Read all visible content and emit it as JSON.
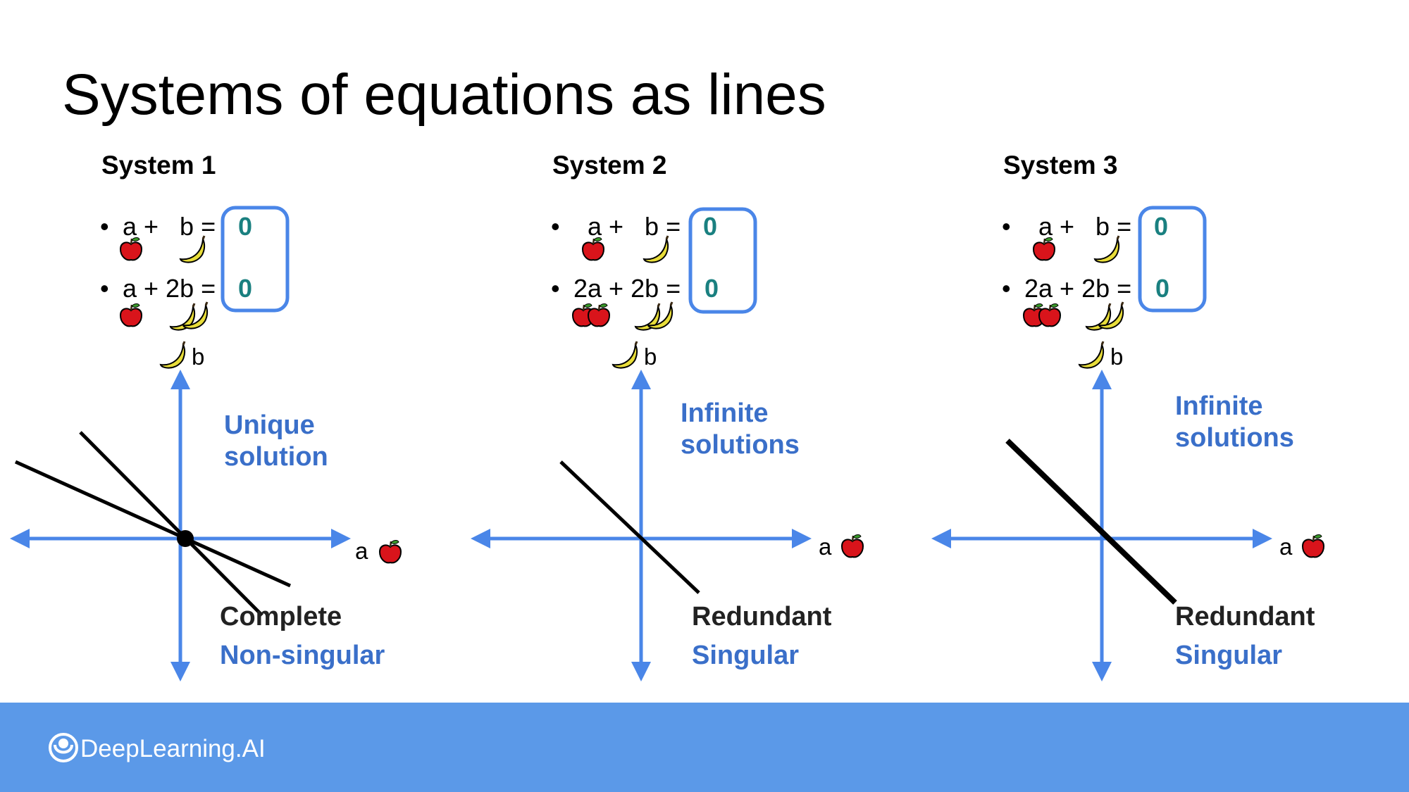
{
  "slide": {
    "title": "Systems of equations as lines",
    "brand": "DeepLearning.AI"
  },
  "colors": {
    "axis": "#4a86e8",
    "label_blue": "#3a6fc9",
    "rhs_teal": "#1a8080",
    "footer": "#5b99e8",
    "box_border": "#4a86e8"
  },
  "icons": {
    "apple": "red-apple-icon",
    "banana": "banana-icon",
    "logo": "deeplearning-logo-icon"
  },
  "systems": [
    {
      "heading": "System 1",
      "bullet": "•",
      "eq1": {
        "lhs": "a +   b =",
        "rhs": "0"
      },
      "eq2": {
        "lhs": "a + 2b =",
        "rhs": "0"
      },
      "axis_x_label": "a",
      "axis_y_label": "b",
      "solution_label_1": "Unique",
      "solution_label_2": "solution",
      "type_label": "Complete",
      "singularity_label": "Non-singular"
    },
    {
      "heading": "System 2",
      "bullet": "•",
      "eq1": {
        "lhs": "a +   b =",
        "rhs": "0"
      },
      "eq2": {
        "lhs": "2a + 2b =",
        "rhs": "0"
      },
      "axis_x_label": "a",
      "axis_y_label": "b",
      "solution_label_1": "Infinite",
      "solution_label_2": "solutions",
      "type_label": "Redundant",
      "singularity_label": "Singular"
    },
    {
      "heading": "System 3",
      "bullet": "•",
      "eq1": {
        "lhs": "a +   b =",
        "rhs": "0"
      },
      "eq2": {
        "lhs": "2a + 2b =",
        "rhs": "0"
      },
      "axis_x_label": "a",
      "axis_y_label": "b",
      "solution_label_1": "Infinite",
      "solution_label_2": "solutions",
      "type_label": "Redundant",
      "singularity_label": "Singular"
    }
  ]
}
